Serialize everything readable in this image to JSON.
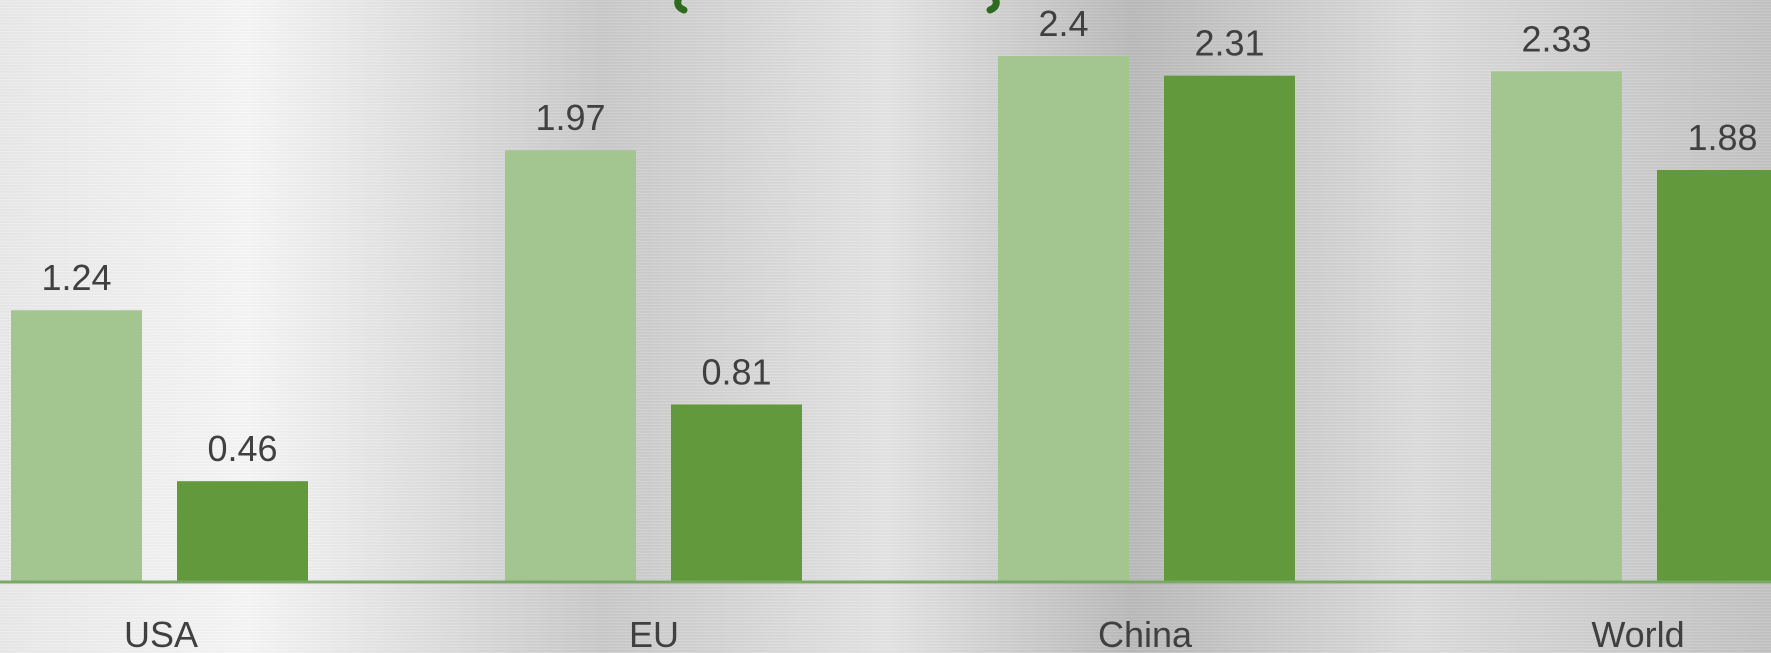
{
  "chart_data": {
    "type": "bar",
    "categories": [
      "USA",
      "EU",
      "China",
      "World"
    ],
    "series": [
      {
        "values": [
          1.24,
          1.97,
          2.4,
          2.33
        ],
        "color": "#a3c590"
      },
      {
        "values": [
          0.46,
          0.81,
          2.31,
          1.88
        ],
        "color": "#63993d"
      }
    ],
    "data_labels": [
      [
        "1.24",
        "1.97",
        "2.4",
        "2.33"
      ],
      [
        "0.46",
        "0.81",
        "2.31",
        "1.88"
      ]
    ],
    "ylim": [
      0,
      2.4
    ],
    "grid": false,
    "baseline_color": "#7aa866",
    "title_color": "#2e6b1e"
  }
}
